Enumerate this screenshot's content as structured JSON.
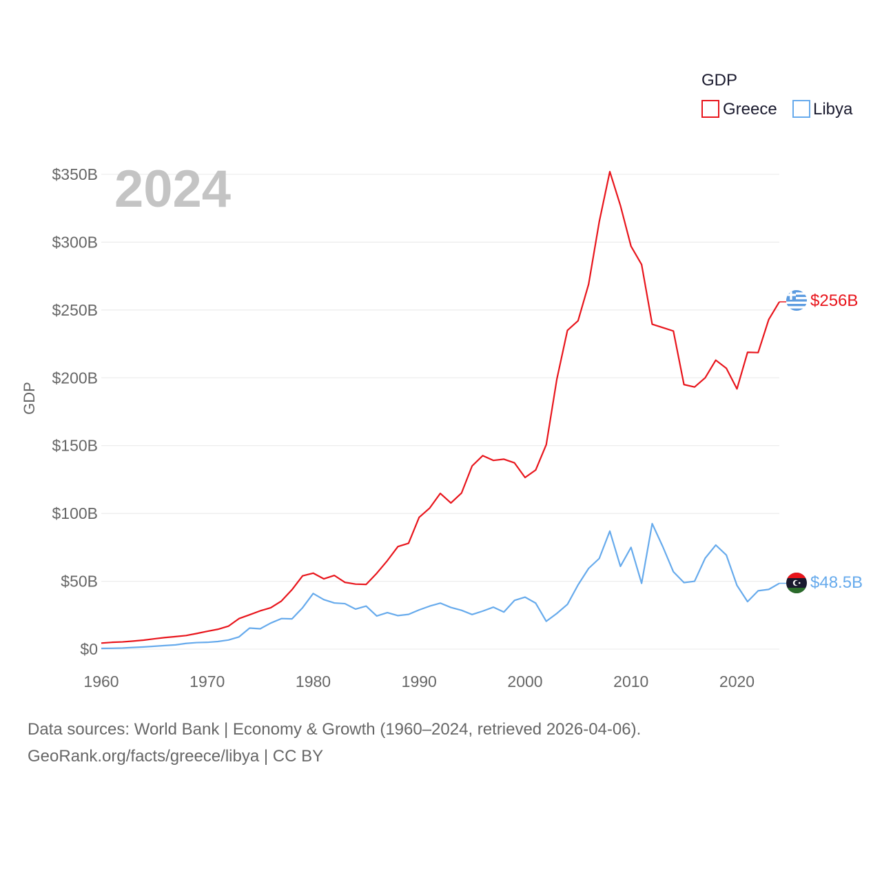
{
  "chart_data": {
    "type": "line",
    "legend_title": "GDP",
    "legend_position": "top-right",
    "year_label": "2024",
    "ylabel": "GDP",
    "xlabel": "",
    "ylim": [
      0,
      350
    ],
    "xlim": [
      1960,
      2024
    ],
    "y_ticks": [
      0,
      50,
      100,
      150,
      200,
      250,
      300,
      350
    ],
    "y_tick_labels": [
      "$0",
      "$50B",
      "$100B",
      "$150B",
      "$200B",
      "$250B",
      "$300B",
      "$350B"
    ],
    "x_ticks": [
      1960,
      1970,
      1980,
      1990,
      2000,
      2010,
      2020
    ],
    "x_tick_labels": [
      "1960",
      "1970",
      "1980",
      "1990",
      "2000",
      "2010",
      "2020"
    ],
    "grid": true,
    "x": [
      1960,
      1961,
      1962,
      1963,
      1964,
      1965,
      1966,
      1967,
      1968,
      1969,
      1970,
      1971,
      1972,
      1973,
      1974,
      1975,
      1976,
      1977,
      1978,
      1979,
      1980,
      1981,
      1982,
      1983,
      1984,
      1985,
      1986,
      1987,
      1988,
      1989,
      1990,
      1991,
      1992,
      1993,
      1994,
      1995,
      1996,
      1997,
      1998,
      1999,
      2000,
      2001,
      2002,
      2003,
      2004,
      2005,
      2006,
      2007,
      2008,
      2009,
      2010,
      2011,
      2012,
      2013,
      2014,
      2015,
      2016,
      2017,
      2018,
      2019,
      2020,
      2021,
      2022,
      2023,
      2024
    ],
    "series": [
      {
        "name": "Greece",
        "color": "#e8141b",
        "end_label": "$256B",
        "flag": "greece-flag",
        "values": [
          4.4,
          5.0,
          5.3,
          5.9,
          6.6,
          7.6,
          8.5,
          9.2,
          10.0,
          11.5,
          13.1,
          14.6,
          16.9,
          22.5,
          25.3,
          28.2,
          30.5,
          35.4,
          43.8,
          54.0,
          56.0,
          51.8,
          54.3,
          49.2,
          47.9,
          47.7,
          55.9,
          65.2,
          75.6,
          78.0,
          97.1,
          104.0,
          114.8,
          107.7,
          115.0,
          135.0,
          142.6,
          139.1,
          140.0,
          137.3,
          126.5,
          132.0,
          150.7,
          199.0,
          235.0,
          242.0,
          269.0,
          315.0,
          352.0,
          327.0,
          297.0,
          283.5,
          239.5,
          237.0,
          234.5,
          195.0,
          193.2,
          200.0,
          213.0,
          207.0,
          191.8,
          218.8,
          218.6,
          243.0,
          256.0
        ]
      },
      {
        "name": "Libya",
        "color": "#66aaec",
        "end_label": "$48.5B",
        "flag": "libya-flag",
        "values": [
          0.5,
          0.6,
          0.8,
          1.2,
          1.6,
          2.1,
          2.6,
          3.1,
          4.2,
          4.8,
          5.0,
          5.6,
          6.7,
          9.0,
          15.5,
          15.0,
          19.2,
          22.5,
          22.3,
          30.5,
          41.0,
          36.5,
          34.0,
          33.5,
          29.5,
          31.7,
          24.4,
          26.9,
          24.7,
          25.6,
          28.9,
          31.7,
          33.9,
          30.7,
          28.6,
          25.5,
          28.0,
          30.9,
          27.3,
          35.9,
          38.3,
          33.9,
          20.5,
          26.3,
          33.0,
          47.3,
          59.5,
          66.8,
          87.0,
          61.0,
          75.0,
          48.5,
          92.5,
          75.5,
          57.0,
          49.0,
          50.0,
          67.0,
          76.7,
          69.3,
          47.0,
          35.0,
          43.0,
          44.0,
          48.5
        ]
      }
    ]
  },
  "footer": {
    "line1": "Data sources: World Bank | Economy & Growth (1960–2024, retrieved 2026-04-06).",
    "line2": "GeoRank.org/facts/greece/libya | CC BY"
  }
}
